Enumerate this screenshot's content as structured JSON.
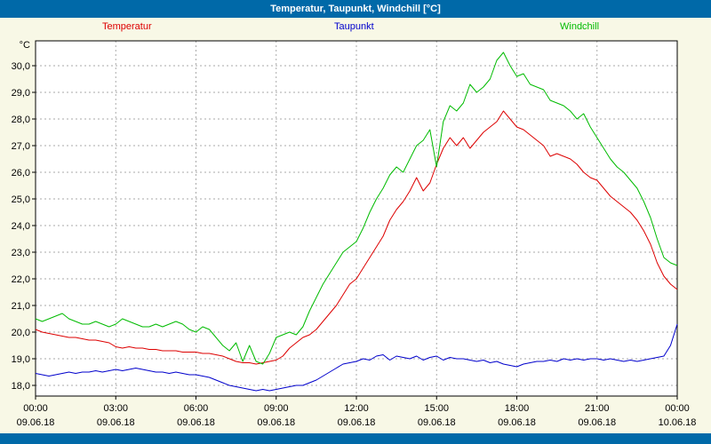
{
  "window": {
    "title": "Temperatur, Taupunkt, Windchill [°C]"
  },
  "legend": [
    {
      "label": "Temperatur",
      "color": "#dd0000"
    },
    {
      "label": "Taupunkt",
      "color": "#0000cc"
    },
    {
      "label": "Windchill",
      "color": "#00bb00"
    }
  ],
  "colors": {
    "titlebar": "#0069a8",
    "background": "#f8f8e6",
    "plot_background": "#ffffff",
    "grid": "#aaaaaa",
    "frame": "#000000"
  },
  "chart_data": {
    "type": "line",
    "title": "Temperatur, Taupunkt, Windchill [°C]",
    "ylabel": "°C",
    "ylim": [
      18,
      30
    ],
    "x_range_hours": [
      0,
      24
    ],
    "x_step_hours": 0.25,
    "grid": "dashed",
    "legend_position": "top",
    "y_ticks": [
      {
        "value": 30,
        "label": "30,0"
      },
      {
        "value": 29,
        "label": "29,0"
      },
      {
        "value": 28,
        "label": "28,0"
      },
      {
        "value": 27,
        "label": "27,0"
      },
      {
        "value": 26,
        "label": "26,0"
      },
      {
        "value": 25,
        "label": "25,0"
      },
      {
        "value": 24,
        "label": "24,0"
      },
      {
        "value": 23,
        "label": "23,0"
      },
      {
        "value": 22,
        "label": "22,0"
      },
      {
        "value": 21,
        "label": "21,0"
      },
      {
        "value": 20,
        "label": "20,0"
      },
      {
        "value": 19,
        "label": "19,0"
      },
      {
        "value": 18,
        "label": "18,0"
      }
    ],
    "x_ticks": [
      {
        "hour": 0,
        "time": "00:00",
        "date": "09.06.18"
      },
      {
        "hour": 3,
        "time": "03:00",
        "date": "09.06.18"
      },
      {
        "hour": 6,
        "time": "06:00",
        "date": "09.06.18"
      },
      {
        "hour": 9,
        "time": "09:00",
        "date": "09.06.18"
      },
      {
        "hour": 12,
        "time": "12:00",
        "date": "09.06.18"
      },
      {
        "hour": 15,
        "time": "15:00",
        "date": "09.06.18"
      },
      {
        "hour": 18,
        "time": "18:00",
        "date": "09.06.18"
      },
      {
        "hour": 21,
        "time": "21:00",
        "date": "09.06.18"
      },
      {
        "hour": 24,
        "time": "00:00",
        "date": "10.06.18"
      }
    ],
    "series": [
      {
        "name": "Temperatur",
        "color": "#dd0000",
        "values": [
          20.1,
          20.0,
          19.95,
          19.9,
          19.85,
          19.8,
          19.8,
          19.75,
          19.7,
          19.7,
          19.65,
          19.6,
          19.45,
          19.4,
          19.45,
          19.4,
          19.4,
          19.35,
          19.35,
          19.3,
          19.3,
          19.3,
          19.25,
          19.25,
          19.25,
          19.2,
          19.2,
          19.15,
          19.1,
          19.0,
          18.9,
          18.85,
          18.85,
          18.8,
          18.85,
          18.9,
          18.95,
          19.1,
          19.4,
          19.6,
          19.8,
          19.9,
          20.1,
          20.4,
          20.7,
          21.0,
          21.4,
          21.8,
          22.0,
          22.4,
          22.8,
          23.2,
          23.6,
          24.2,
          24.6,
          24.9,
          25.3,
          25.8,
          25.3,
          25.6,
          26.3,
          26.9,
          27.3,
          27.0,
          27.3,
          26.9,
          27.2,
          27.5,
          27.7,
          27.9,
          28.3,
          28.0,
          27.7,
          27.6,
          27.4,
          27.2,
          27.0,
          26.6,
          26.7,
          26.6,
          26.5,
          26.3,
          26.0,
          25.8,
          25.7,
          25.4,
          25.1,
          24.9,
          24.7,
          24.5,
          24.2,
          23.8,
          23.3,
          22.6,
          22.1,
          21.8,
          21.6
        ]
      },
      {
        "name": "Taupunkt",
        "color": "#0000cc",
        "values": [
          18.45,
          18.4,
          18.35,
          18.4,
          18.45,
          18.5,
          18.45,
          18.5,
          18.5,
          18.55,
          18.5,
          18.55,
          18.6,
          18.55,
          18.6,
          18.65,
          18.6,
          18.55,
          18.5,
          18.5,
          18.45,
          18.5,
          18.45,
          18.4,
          18.4,
          18.35,
          18.3,
          18.2,
          18.1,
          18.0,
          17.95,
          17.9,
          17.85,
          17.8,
          17.85,
          17.8,
          17.85,
          17.9,
          17.95,
          18.0,
          18.0,
          18.1,
          18.2,
          18.35,
          18.5,
          18.65,
          18.8,
          18.85,
          18.9,
          19.0,
          18.95,
          19.1,
          19.15,
          18.95,
          19.1,
          19.05,
          19.0,
          19.1,
          18.95,
          19.05,
          19.1,
          18.95,
          19.05,
          19.0,
          19.0,
          18.95,
          18.9,
          18.95,
          18.85,
          18.9,
          18.8,
          18.75,
          18.7,
          18.8,
          18.85,
          18.9,
          18.9,
          18.95,
          18.9,
          19.0,
          18.95,
          19.0,
          18.95,
          19.0,
          19.0,
          18.95,
          19.0,
          18.95,
          18.9,
          18.95,
          18.9,
          18.95,
          19.0,
          19.05,
          19.1,
          19.5,
          20.3
        ]
      },
      {
        "name": "Windchill",
        "color": "#00bb00",
        "values": [
          20.5,
          20.4,
          20.5,
          20.6,
          20.7,
          20.5,
          20.4,
          20.3,
          20.3,
          20.4,
          20.3,
          20.2,
          20.3,
          20.5,
          20.4,
          20.3,
          20.2,
          20.2,
          20.3,
          20.2,
          20.3,
          20.4,
          20.3,
          20.1,
          20.0,
          20.2,
          20.1,
          19.8,
          19.5,
          19.3,
          19.6,
          18.9,
          19.5,
          18.9,
          18.8,
          19.2,
          19.8,
          19.9,
          20.0,
          19.9,
          20.2,
          20.8,
          21.3,
          21.8,
          22.2,
          22.6,
          23.0,
          23.2,
          23.4,
          23.9,
          24.5,
          25.0,
          25.4,
          25.9,
          26.2,
          26.0,
          26.5,
          27.0,
          27.2,
          27.6,
          26.2,
          27.9,
          28.5,
          28.3,
          28.6,
          29.3,
          29.0,
          29.2,
          29.5,
          30.2,
          30.5,
          30.0,
          29.6,
          29.7,
          29.3,
          29.2,
          29.1,
          28.7,
          28.6,
          28.5,
          28.3,
          28.0,
          28.2,
          27.7,
          27.3,
          26.9,
          26.5,
          26.2,
          26.0,
          25.7,
          25.4,
          24.9,
          24.3,
          23.5,
          22.8,
          22.6,
          22.5
        ]
      }
    ]
  }
}
